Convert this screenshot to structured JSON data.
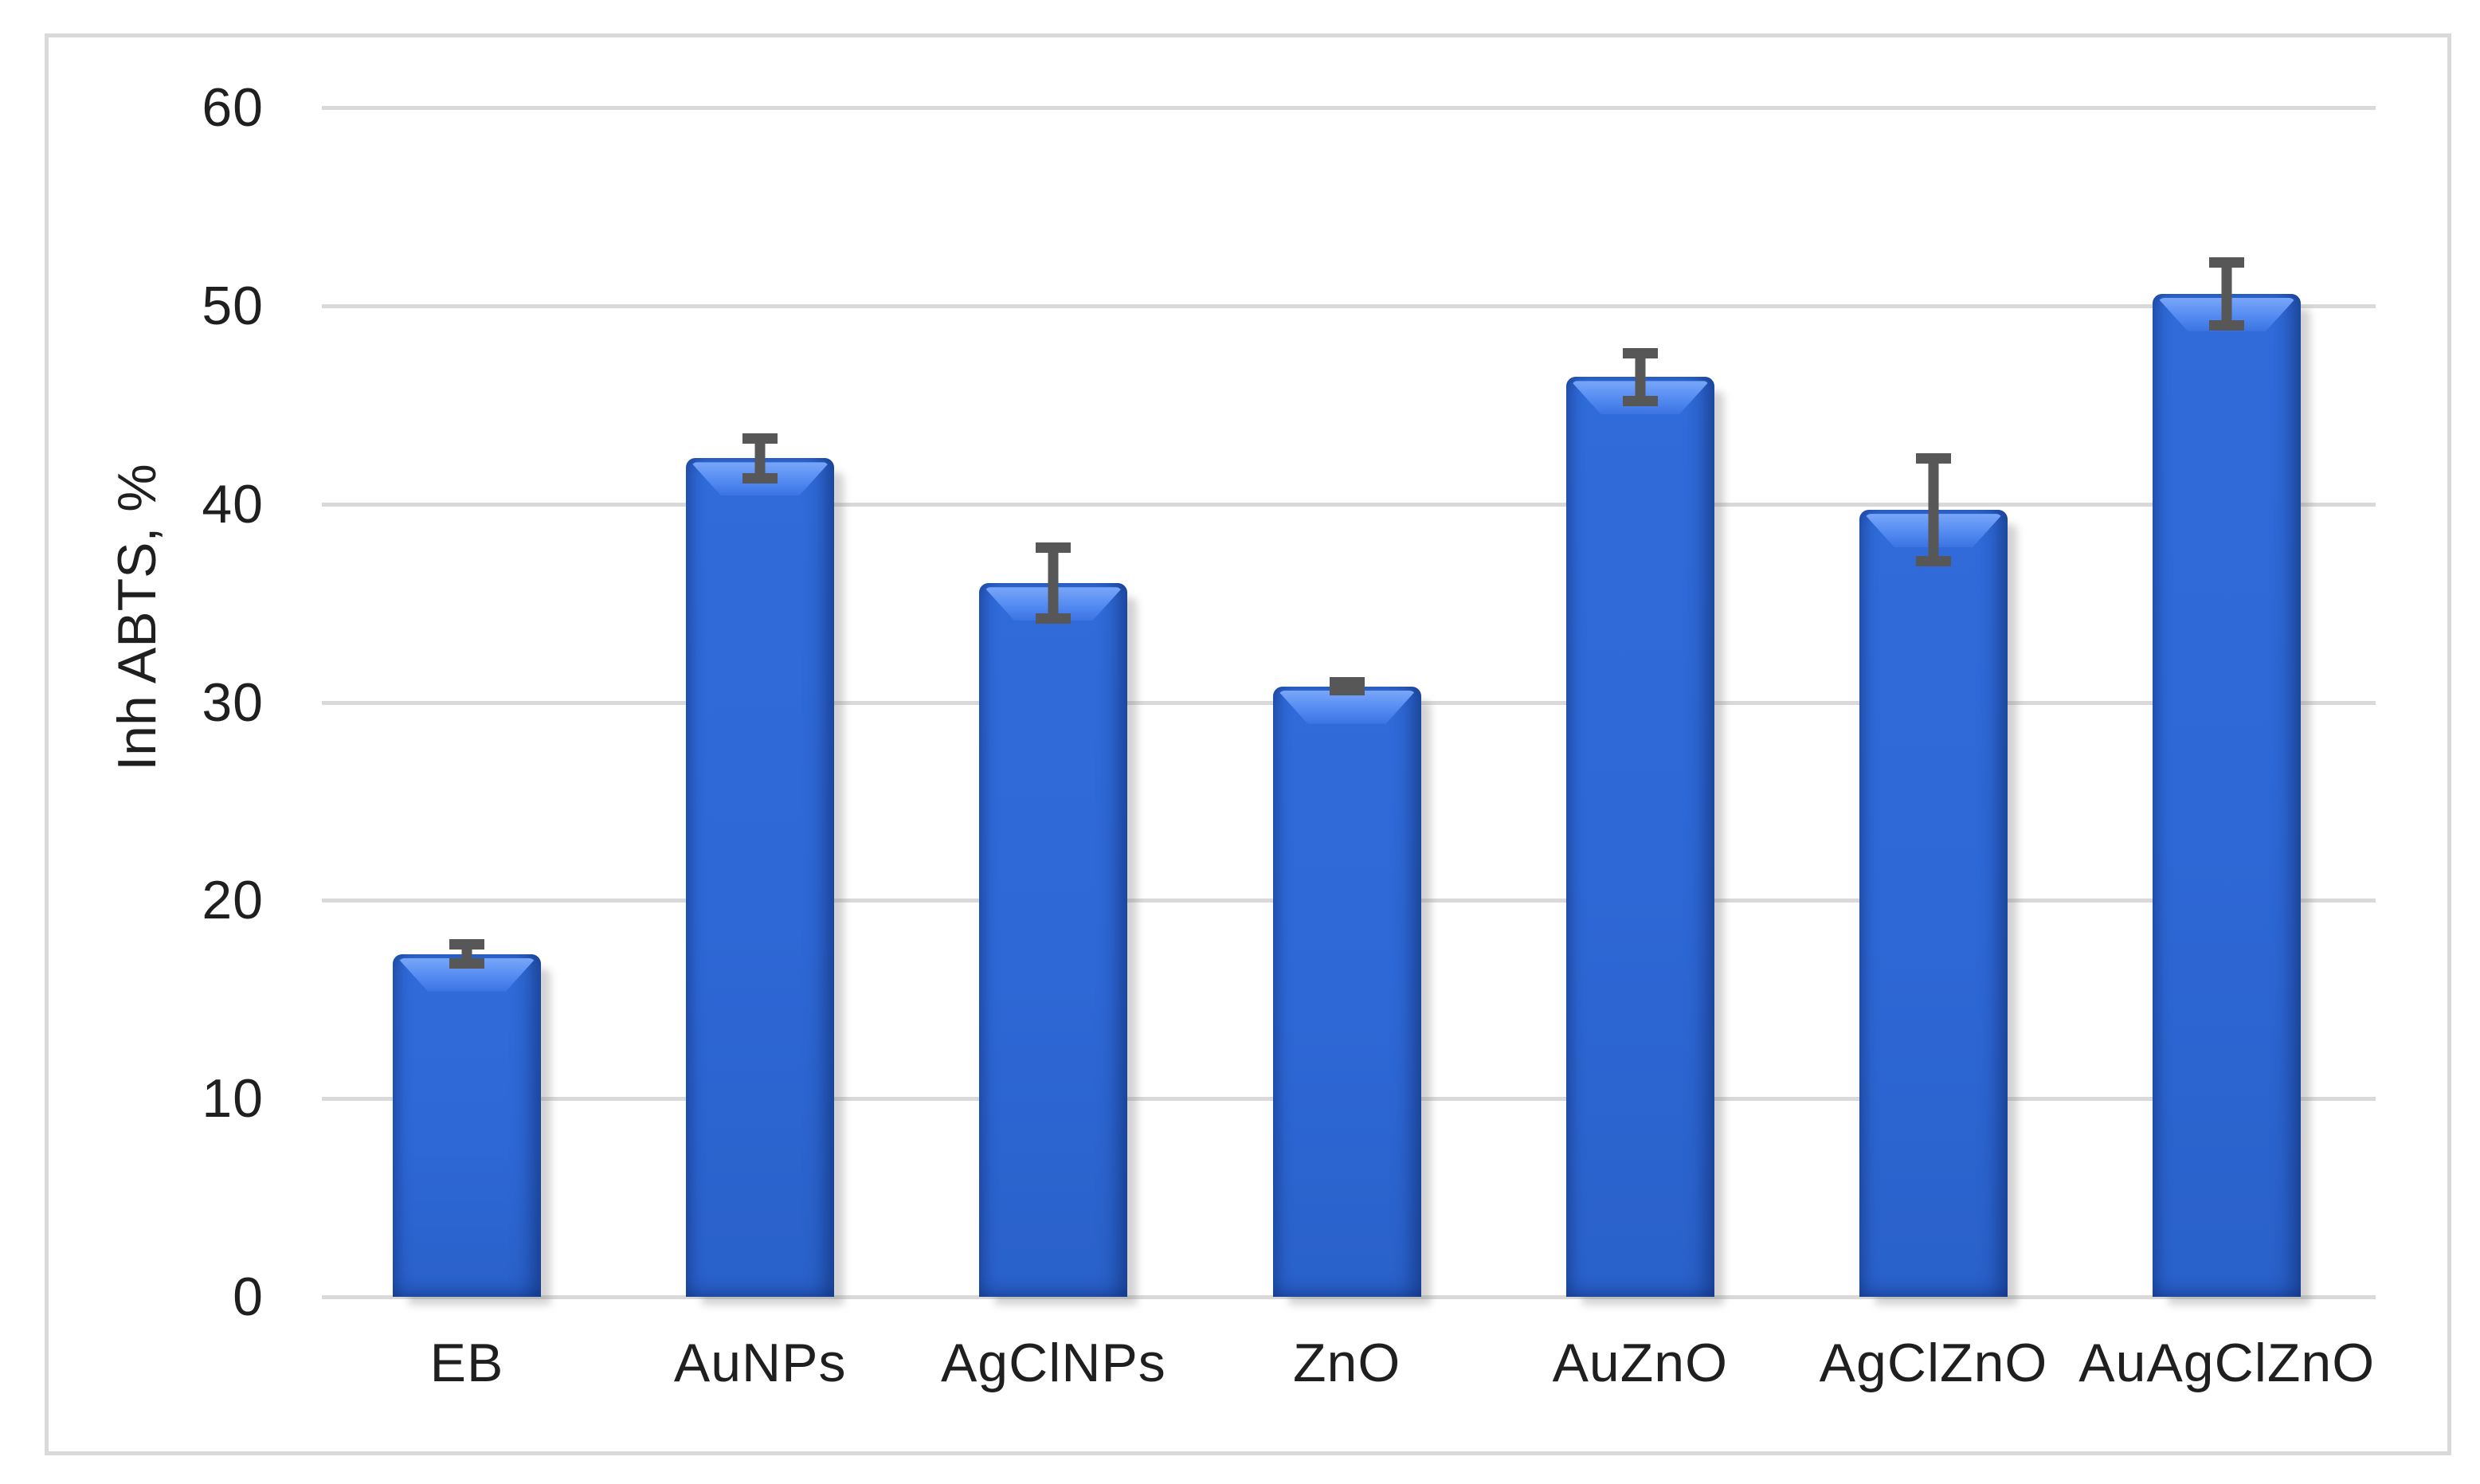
{
  "figure": {
    "background_color": "#ffffff",
    "border_color": "#d9d9d9"
  },
  "chart_data": {
    "type": "bar",
    "title": "",
    "xlabel": "",
    "ylabel": "Inh ABTS, %",
    "categories": [
      "EB",
      "AuNPs",
      "AgClNPs",
      "ZnO",
      "AuZnO",
      "AgClZnO",
      "AuAgClZnO"
    ],
    "values": [
      17.3,
      42.3,
      36.0,
      30.8,
      46.4,
      39.7,
      50.6
    ],
    "error_bars": [
      0.5,
      1.0,
      1.8,
      0.2,
      1.2,
      2.6,
      1.6
    ],
    "ylim": [
      0,
      60
    ],
    "yticks": [
      0,
      10,
      20,
      30,
      40,
      50,
      60
    ],
    "grid": "horizontal-major",
    "legend": "none",
    "bar_color": "#2e68d6",
    "bar_highlight_color": "#6ea0f7",
    "bar_edge_shade_color": "#1d4fae",
    "error_bar_color": "#575757",
    "gridline_color": "#d9d9d9",
    "tick_label_color": "#1f1f1f"
  }
}
